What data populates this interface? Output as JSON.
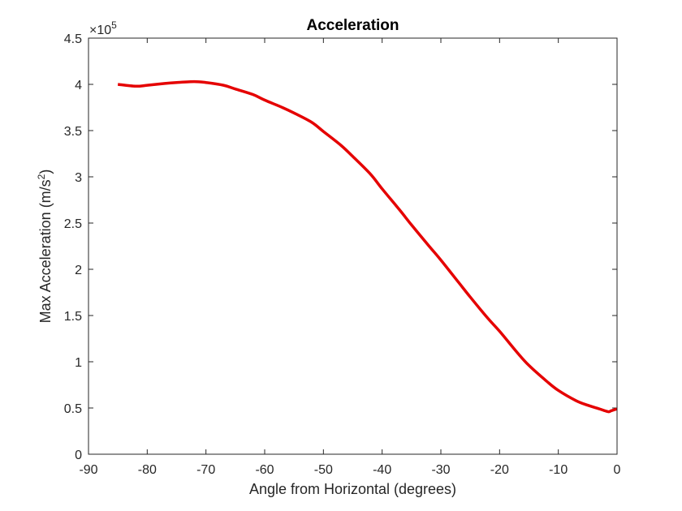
{
  "chart_data": {
    "type": "line",
    "title": "Acceleration",
    "xlabel": "Angle from Horizontal (degrees)",
    "ylabel": "Max Acceleration (m/s²)",
    "ylabel_main": "Max Acceleration (m/s",
    "ylabel_sup": "2",
    "ylabel_end": ")",
    "y_exponent_base": "×10",
    "y_exponent": "5",
    "xlim": [
      -90,
      0
    ],
    "ylim": [
      0,
      4.5
    ],
    "x_ticks": [
      -90,
      -80,
      -70,
      -60,
      -50,
      -40,
      -30,
      -20,
      -10,
      0
    ],
    "x_tick_labels": [
      "-90",
      "-80",
      "-70",
      "-60",
      "-50",
      "-40",
      "-30",
      "-20",
      "-10",
      "0"
    ],
    "y_ticks": [
      0,
      0.5,
      1,
      1.5,
      2,
      2.5,
      3,
      3.5,
      4,
      4.5
    ],
    "y_tick_labels": [
      "0",
      "0.5",
      "1",
      "1.5",
      "2",
      "2.5",
      "3",
      "3.5",
      "4",
      "4.5"
    ],
    "grid": false,
    "series": [
      {
        "color": "#e50000",
        "x": [
          -85,
          -82,
          -80,
          -77,
          -75,
          -72,
          -70,
          -67,
          -65,
          -62,
          -60,
          -57,
          -55,
          -52,
          -50,
          -47,
          -45,
          -42,
          -40,
          -37,
          -35,
          -32,
          -30,
          -27,
          -25,
          -22,
          -20,
          -17,
          -15,
          -12,
          -10,
          -7,
          -5,
          -3,
          -1.5,
          -1,
          0
        ],
        "y": [
          4.0,
          3.98,
          3.99,
          4.01,
          4.02,
          4.03,
          4.02,
          3.99,
          3.95,
          3.89,
          3.83,
          3.75,
          3.69,
          3.59,
          3.49,
          3.34,
          3.22,
          3.03,
          2.87,
          2.64,
          2.48,
          2.25,
          2.1,
          1.86,
          1.7,
          1.47,
          1.33,
          1.1,
          0.96,
          0.79,
          0.69,
          0.58,
          0.53,
          0.49,
          0.46,
          0.47,
          0.49
        ]
      }
    ]
  }
}
